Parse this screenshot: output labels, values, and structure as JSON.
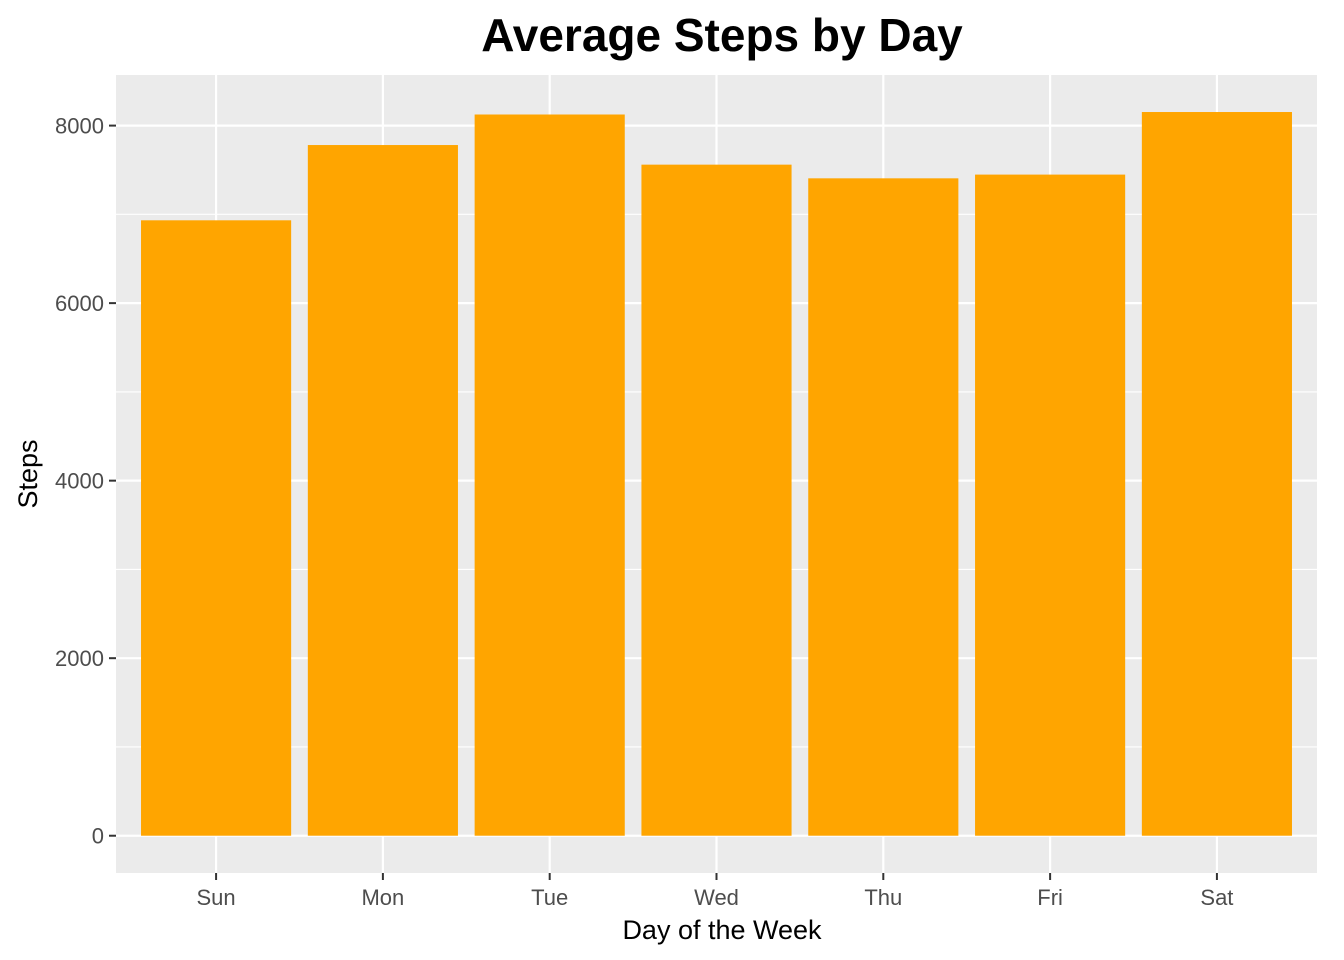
{
  "chart_data": {
    "type": "bar",
    "title": "Average Steps by Day",
    "xlabel": "Day of the Week",
    "ylabel": "Steps",
    "categories": [
      "Sun",
      "Mon",
      "Tue",
      "Wed",
      "Thu",
      "Fri",
      "Sat"
    ],
    "values": [
      6933,
      7781,
      8125,
      7560,
      7406,
      7448,
      8153
    ],
    "ylim": [
      -420,
      8570
    ],
    "yticks": [
      0,
      2000,
      4000,
      6000,
      8000
    ],
    "ytick_labels": [
      "0",
      "2000",
      "4000",
      "6000",
      "8000"
    ],
    "grid": true,
    "legend": "none",
    "colors": {
      "bar": "#FFA500",
      "panel": "#EBEBEB",
      "grid": "#FFFFFF",
      "tick": "#333333"
    }
  }
}
